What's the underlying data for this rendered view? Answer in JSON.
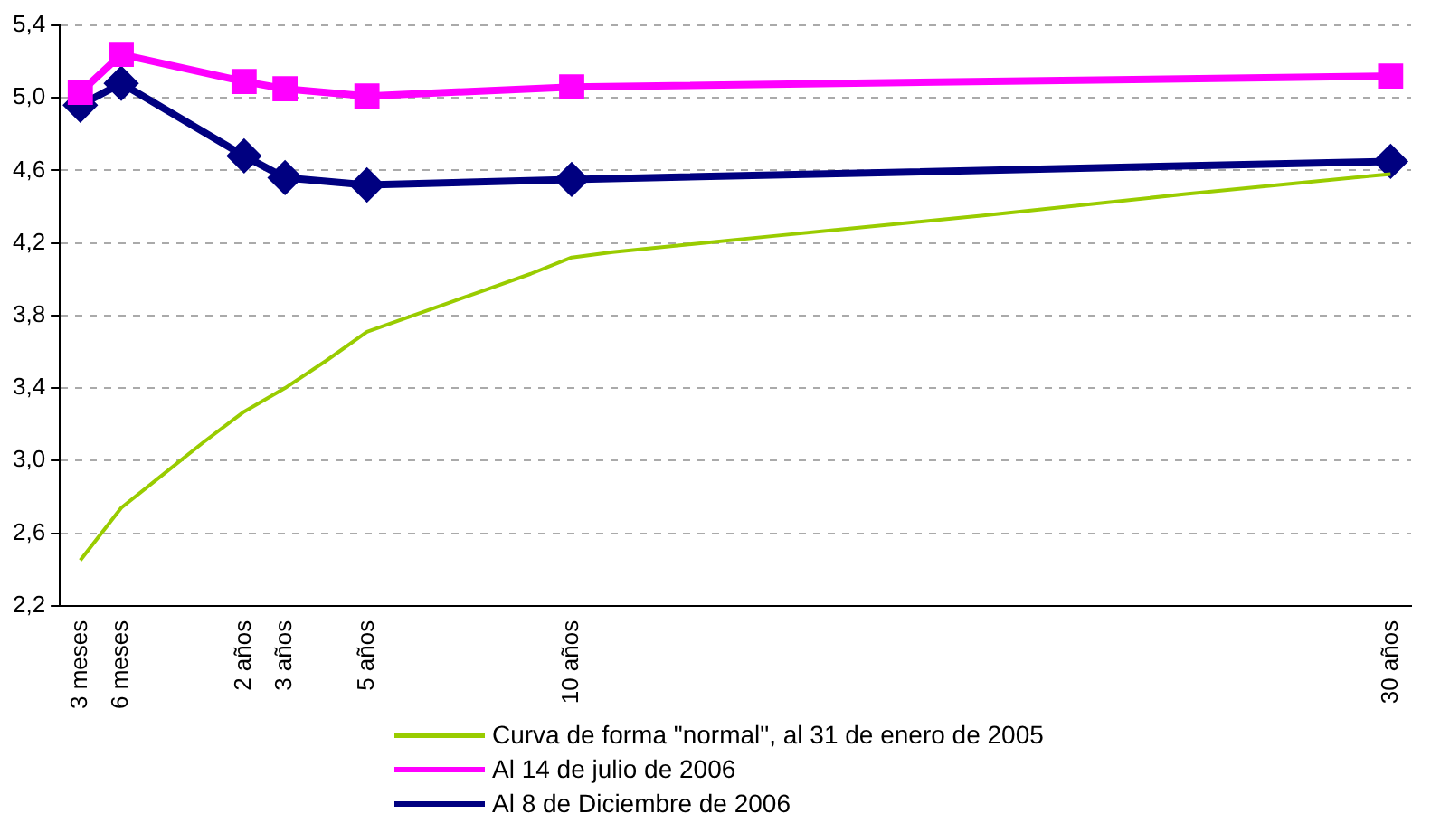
{
  "chart_data": {
    "type": "line",
    "categories": [
      "3 meses",
      "6 meses",
      null,
      null,
      "2 años",
      "3 años",
      null,
      "5 años",
      null,
      null,
      null,
      null,
      "10 años",
      null,
      null,
      null,
      null,
      null,
      null,
      null,
      null,
      null,
      null,
      null,
      null,
      null,
      null,
      null,
      null,
      null,
      null,
      null,
      "30 años"
    ],
    "series": [
      {
        "name": "Curva de forma \"normal\", al 31 de enero de 2005",
        "color": "#99cc00",
        "marker": "none",
        "values": [
          2.45,
          2.74,
          2.92,
          3.1,
          3.27,
          3.4,
          3.55,
          3.71,
          3.79,
          3.87,
          3.95,
          4.03,
          4.12,
          4.15,
          null,
          null,
          null,
          4.24,
          null,
          null,
          null,
          null,
          4.35,
          null,
          null,
          null,
          null,
          4.47,
          null,
          null,
          null,
          null,
          4.58
        ]
      },
      {
        "name": "Al 14 de julio de 2006",
        "color": "#ff00ff",
        "marker": "square",
        "values": [
          5.03,
          5.24,
          null,
          null,
          5.09,
          5.05,
          null,
          5.01,
          null,
          null,
          null,
          null,
          5.06,
          null,
          null,
          null,
          null,
          null,
          null,
          null,
          null,
          null,
          null,
          null,
          null,
          null,
          null,
          null,
          null,
          null,
          null,
          null,
          5.12
        ]
      },
      {
        "name": "Al 8 de Diciembre de 2006",
        "color": "#000080",
        "marker": "diamond",
        "values": [
          4.96,
          5.08,
          null,
          null,
          4.68,
          4.56,
          null,
          4.52,
          null,
          null,
          null,
          null,
          4.55,
          null,
          null,
          null,
          null,
          null,
          null,
          null,
          null,
          null,
          null,
          null,
          null,
          null,
          null,
          null,
          null,
          null,
          null,
          null,
          4.65
        ]
      }
    ],
    "ylim": [
      2.2,
      5.4
    ],
    "yticks": [
      {
        "value": 2.2,
        "label": "2,2"
      },
      {
        "value": 2.6,
        "label": "2,6"
      },
      {
        "value": 3.0,
        "label": "3,0"
      },
      {
        "value": 3.4,
        "label": "3,4"
      },
      {
        "value": 3.8,
        "label": "3,8"
      },
      {
        "value": 4.2,
        "label": "4,2"
      },
      {
        "value": 4.6,
        "label": "4,6"
      },
      {
        "value": 5.0,
        "label": "5,0"
      },
      {
        "value": 5.4,
        "label": "5,4"
      }
    ],
    "grid": "y",
    "legend": "bottom"
  }
}
